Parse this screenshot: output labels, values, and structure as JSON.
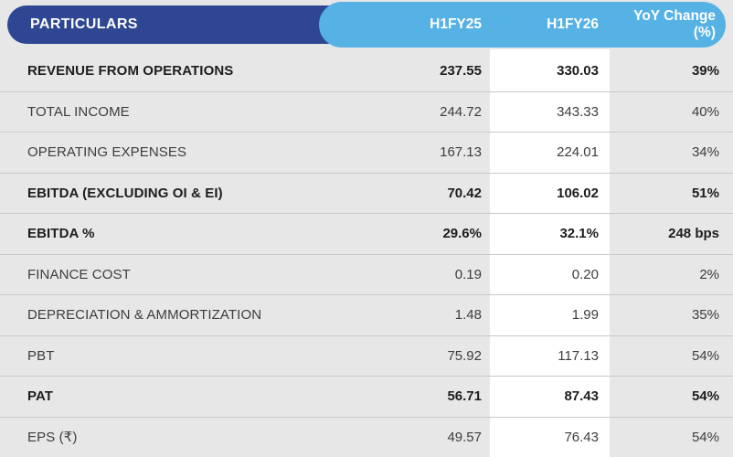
{
  "table": {
    "title_column_header": "PARTICULARS",
    "columns": {
      "h1fy25": "H1FY25",
      "h1fy26": "H1FY26",
      "yoy": "YoY Change (%)"
    },
    "rows": [
      {
        "label": "REVENUE FROM OPERATIONS",
        "h1fy25": "237.55",
        "h1fy26": "330.03",
        "yoy": "39%",
        "emphasis": true
      },
      {
        "label": "TOTAL INCOME",
        "h1fy25": "244.72",
        "h1fy26": "343.33",
        "yoy": "40%",
        "emphasis": false
      },
      {
        "label": "OPERATING EXPENSES",
        "h1fy25": "167.13",
        "h1fy26": "224.01",
        "yoy": "34%",
        "emphasis": false
      },
      {
        "label": "EBITDA (EXCLUDING OI & EI)",
        "h1fy25": "70.42",
        "h1fy26": "106.02",
        "yoy": "51%",
        "emphasis": true
      },
      {
        "label": "EBITDA %",
        "h1fy25": "29.6%",
        "h1fy26": "32.1%",
        "yoy": "248 bps",
        "emphasis": true
      },
      {
        "label": "FINANCE COST",
        "h1fy25": "0.19",
        "h1fy26": "0.20",
        "yoy": "2%",
        "emphasis": false
      },
      {
        "label": "DEPRECIATION & AMMORTIZATION",
        "h1fy25": "1.48",
        "h1fy26": "1.99",
        "yoy": "35%",
        "emphasis": false
      },
      {
        "label": "PBT",
        "h1fy25": "75.92",
        "h1fy26": "117.13",
        "yoy": "54%",
        "emphasis": false
      },
      {
        "label": "PAT",
        "h1fy25": "56.71",
        "h1fy26": "87.43",
        "yoy": "54%",
        "emphasis": true
      },
      {
        "label": "EPS (₹)",
        "h1fy25": "49.57",
        "h1fy26": "76.43",
        "yoy": "54%",
        "emphasis": false
      }
    ]
  },
  "colors": {
    "background": "#e7e7e7",
    "navy_header": "#2f4792",
    "blue_header": "#56b1e4",
    "highlight_column": "#ffffff",
    "separator": "#c9c9c9",
    "text_regular": "#3d3d3d",
    "text_bold": "#1d1d1d",
    "header_text": "#ffffff"
  }
}
